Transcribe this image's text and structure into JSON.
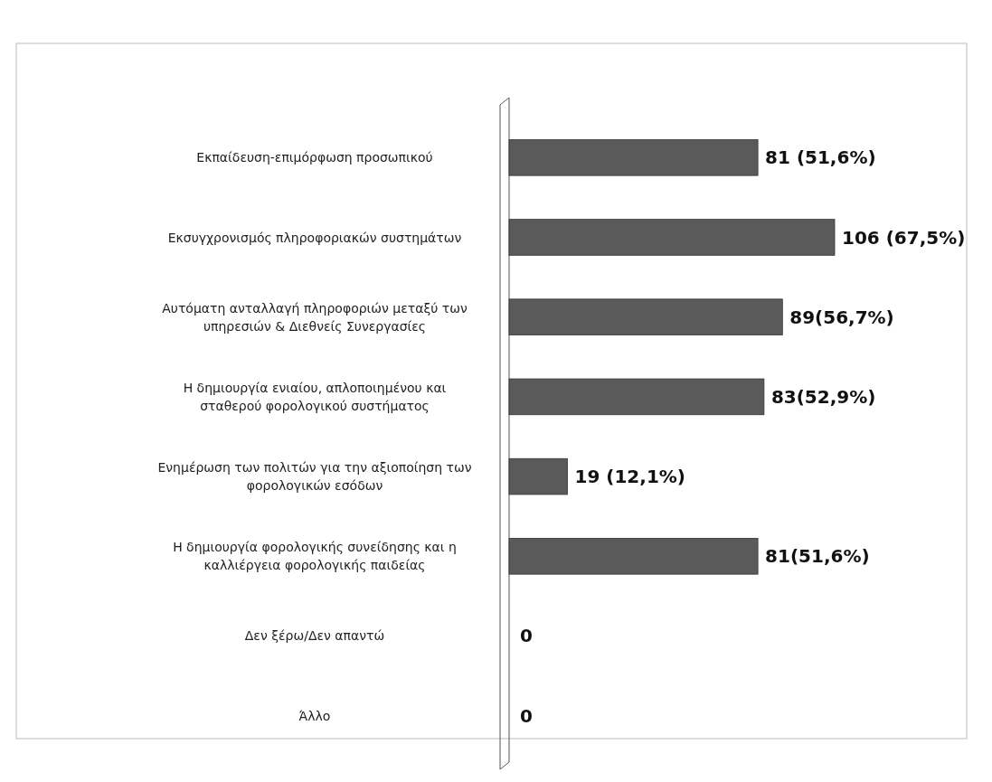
{
  "chart_data": {
    "type": "bar",
    "orientation": "horizontal",
    "categories": [
      "Εκπαίδευση-επιμόρφωση προσωπικού",
      "Εκσυγχρονισμός πληροφοριακών  συστημάτων",
      "Αυτόματη ανταλλαγή πληροφοριών μεταξύ των\nυπηρεσιών &  Διεθνείς Συνεργασίες",
      "Η δημιουργία ενιαίου, απλοποιημένου και\nσταθερού  φορολογικού  συστήματος",
      "Ενημέρωση των πολιτών για την αξιοποίηση των\nφορολογικών εσόδων",
      "Η δημιουργία  φορολογικής συνείδησης και η\nκαλλιέργεια φορολογικής παιδείας",
      "Δεν ξέρω/Δεν απαντώ",
      "Άλλο"
    ],
    "values": [
      81,
      106,
      89,
      83,
      19,
      81,
      0,
      0
    ],
    "value_labels": [
      "81 (51,6%)",
      "106 (67,5%)",
      "89(56,7%)",
      "83(52,9%)",
      "19 (12,1%)",
      "81(51,6%)",
      "0",
      "0"
    ],
    "color": "#5a5a5a"
  }
}
